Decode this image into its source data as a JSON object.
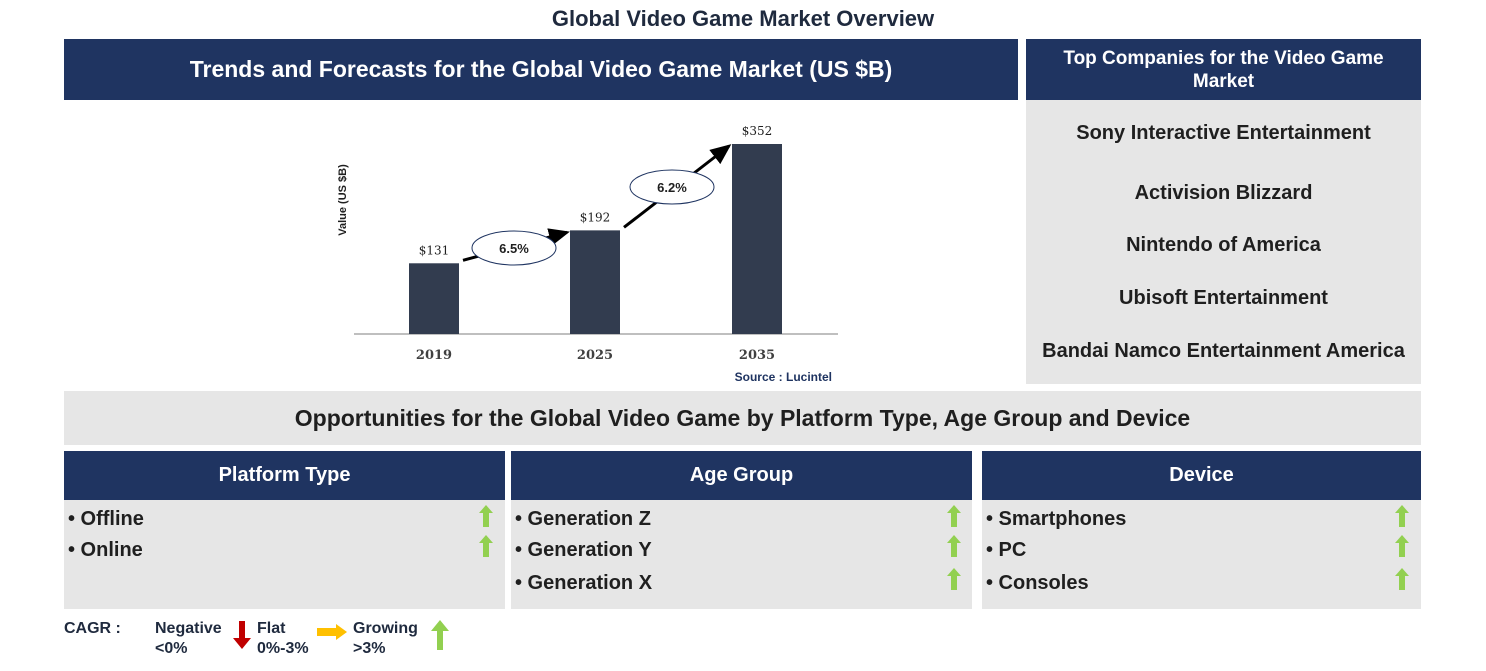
{
  "page": {
    "title": "Global Video Game Market Overview"
  },
  "chart_section": {
    "header": "Trends and Forecasts for the Global Video Game Market (US $B)",
    "source": "Source : Lucintel"
  },
  "chart_data": {
    "type": "bar",
    "categories": [
      "2019",
      "2025",
      "2035"
    ],
    "values": [
      131,
      192,
      352
    ],
    "value_labels": [
      "$131",
      "$192",
      "$352"
    ],
    "ylabel": "Value (US $B)",
    "xlabel": "",
    "ylim": [
      0,
      352
    ],
    "cagr_annotations": [
      {
        "from": "2019",
        "to": "2025",
        "label": "6.5%"
      },
      {
        "from": "2025",
        "to": "2035",
        "label": "6.2%"
      }
    ],
    "colors": {
      "bar": "#323c4f",
      "arrow": "#000000"
    }
  },
  "companies": {
    "header": "Top Companies for the Video Game Market",
    "items": [
      "Sony Interactive Entertainment",
      "Activision Blizzard",
      "Nintendo of America",
      "Ubisoft Entertainment",
      "Bandai Namco Entertainment America"
    ]
  },
  "opportunities": {
    "title": "Opportunities for the Global Video Game by Platform Type, Age Group and Device",
    "segments": [
      {
        "title": "Platform Type",
        "items": [
          {
            "label": "• Offline",
            "trend": "growing"
          },
          {
            "label": "• Online",
            "trend": "growing"
          }
        ]
      },
      {
        "title": "Age Group",
        "items": [
          {
            "label": "• Generation Z",
            "trend": "growing"
          },
          {
            "label": "• Generation Y",
            "trend": "growing"
          },
          {
            "label": "• Generation X",
            "trend": "growing"
          }
        ]
      },
      {
        "title": "Device",
        "items": [
          {
            "label": "• Smartphones",
            "trend": "growing"
          },
          {
            "label": "• PC",
            "trend": "growing"
          },
          {
            "label": "• Consoles",
            "trend": "growing"
          }
        ]
      }
    ]
  },
  "legend": {
    "cagr_label": "CAGR :",
    "negative": {
      "label": "Negative",
      "range": "<0%",
      "color": "#c00000",
      "icon": "down-arrow-icon"
    },
    "flat": {
      "label": "Flat",
      "range": "0%-3%",
      "color": "#ffc000",
      "icon": "right-arrow-icon"
    },
    "growing": {
      "label": "Growing",
      "range": ">3%",
      "color": "#92d050",
      "icon": "up-arrow-icon"
    }
  },
  "colors": {
    "header_navy": "#1f3461",
    "panel_grey": "#e6e6e6",
    "growth_green": "#92d050"
  }
}
